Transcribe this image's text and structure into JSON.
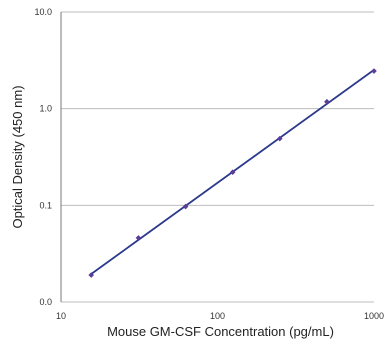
{
  "chart_data": {
    "type": "line",
    "title": "",
    "xlabel": "Mouse GM-CSF Concentration (pg/mL)",
    "ylabel": "Optical Density (450 nm)",
    "x_scale": "log",
    "y_scale": "log",
    "xlim": [
      10,
      1000
    ],
    "ylim": [
      0.01,
      10
    ],
    "x_ticks": [
      10,
      100,
      1000
    ],
    "x_tick_labels": [
      "10",
      "100",
      "1000"
    ],
    "y_ticks": [
      0.01,
      0.1,
      1,
      10
    ],
    "y_tick_labels": [
      "0.0",
      "0.1",
      "1.0",
      "10.0"
    ],
    "grid": "horizontal",
    "legend": "none",
    "series": [
      {
        "x": [
          15.6,
          31.25,
          62.5,
          125,
          250,
          500,
          1000
        ],
        "y": [
          0.019,
          0.046,
          0.097,
          0.22,
          0.49,
          1.18,
          2.45
        ],
        "marker_color": "#5a3d96",
        "fit_line_color": "#2b3a8c"
      }
    ]
  }
}
